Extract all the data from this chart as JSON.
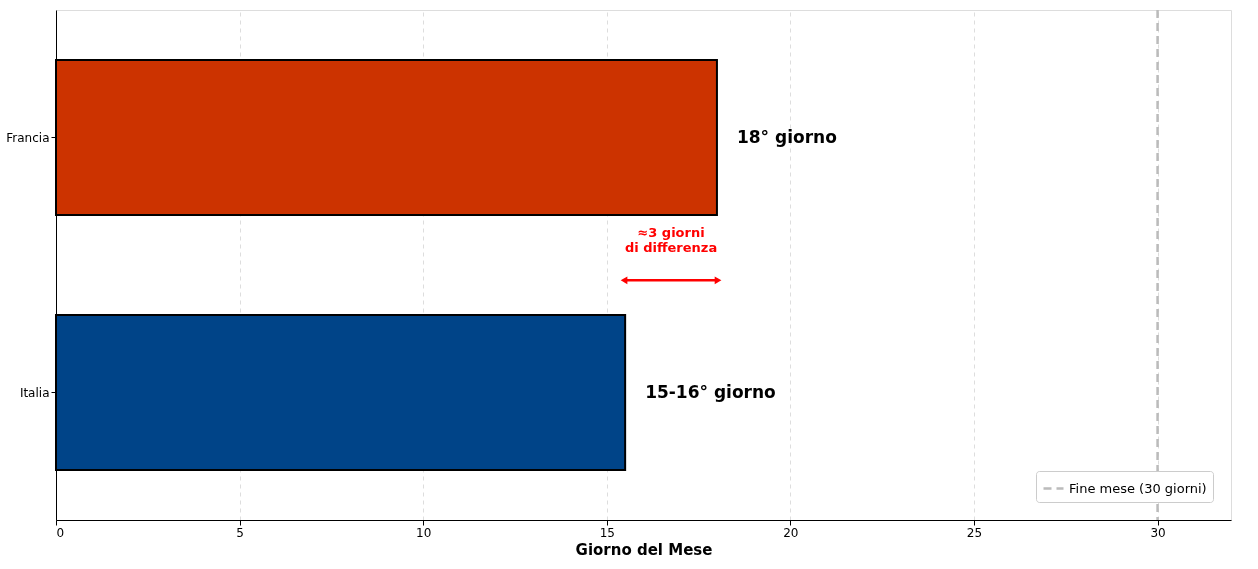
{
  "chart_data": {
    "type": "bar",
    "orientation": "horizontal",
    "xlabel": "Giorno del Mese",
    "categories": [
      "Francia",
      "Italia"
    ],
    "values": [
      18,
      15.5
    ],
    "colors": [
      "#cc3300",
      "#004488"
    ],
    "value_labels": [
      "18° giorno",
      "15-16° giorno"
    ],
    "xlim": [
      0,
      32
    ],
    "xticks": [
      0,
      5,
      10,
      15,
      20,
      25,
      30
    ],
    "grid": "x",
    "ref_lines": [
      {
        "axis": "x",
        "value": 30,
        "label": "Fine mese (30 giorni)",
        "color": "#bbbbbb",
        "line_style": "dashed"
      }
    ],
    "annotations": [
      "≈3 giorni\ndi differenza"
    ],
    "legend": "bottom right"
  }
}
